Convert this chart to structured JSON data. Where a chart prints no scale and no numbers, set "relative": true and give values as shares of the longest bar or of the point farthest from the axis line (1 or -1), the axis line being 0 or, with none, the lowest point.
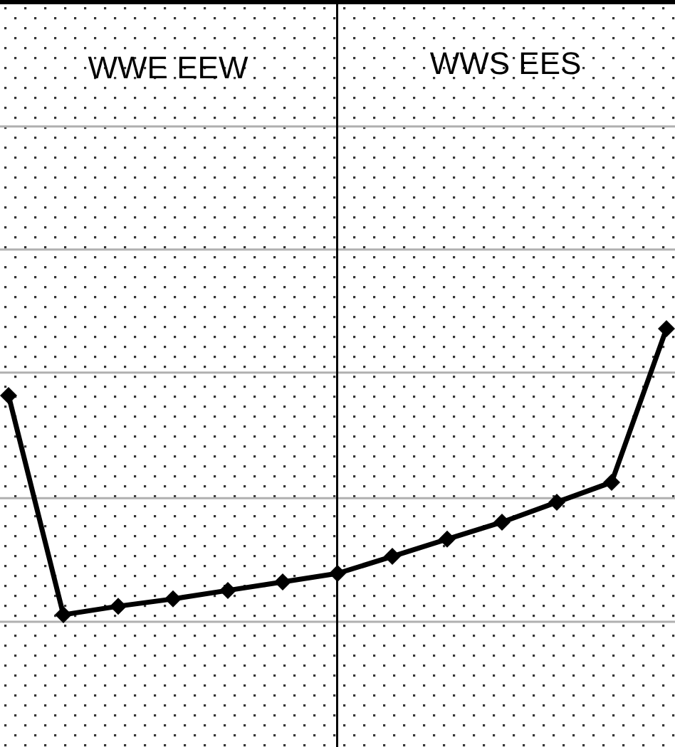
{
  "chart_data": {
    "type": "line",
    "relative": true,
    "categories": [
      null,
      null,
      null,
      null,
      null,
      null,
      null,
      null,
      null,
      null,
      null,
      null,
      null
    ],
    "series": [
      {
        "color": "#000000",
        "values": [
          0.772,
          0.024,
          0.053,
          0.078,
          0.107,
          0.136,
          0.165,
          0.223,
          0.282,
          0.34,
          0.408,
          0.476,
          1
        ]
      }
    ],
    "marker": "diamond",
    "ref_lines": [
      {
        "axis": "y",
        "value": 0,
        "color": "#b0b0b0"
      },
      {
        "axis": "y",
        "value": 0.422,
        "color": "#b0b0b0"
      },
      {
        "axis": "y",
        "value": 0.85,
        "color": "#b0b0b0"
      },
      {
        "axis": "y",
        "value": 1.27,
        "color": "#b0b0b0"
      },
      {
        "axis": "y",
        "value": 1.69,
        "color": "#b0b0b0"
      }
    ],
    "annotations": [
      "WWE EEW",
      "WWS EES"
    ]
  }
}
